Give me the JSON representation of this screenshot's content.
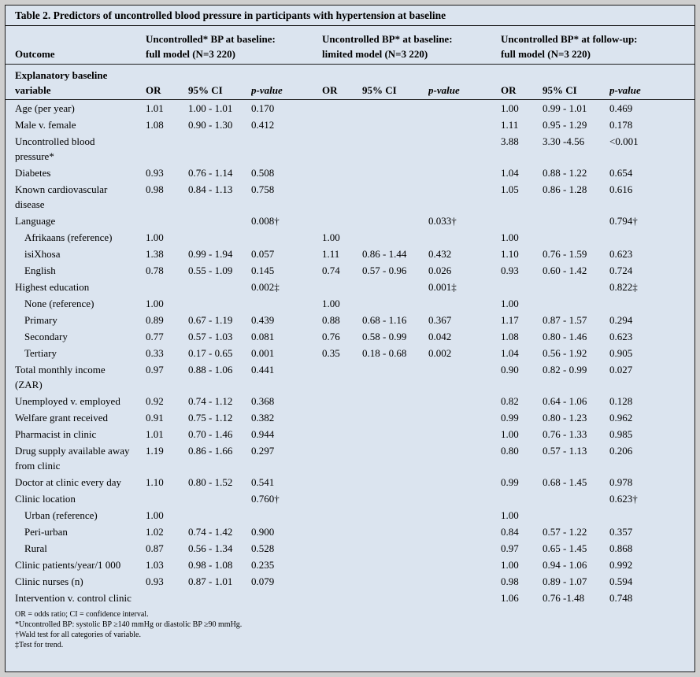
{
  "colors": {
    "background": "#dbe4ef",
    "border": "#1c1c1c",
    "text": "#000000",
    "outer_margin": "#cfcfcf"
  },
  "title": "Table 2. Predictors of uncontrolled blood pressure in participants with hypertension at baseline",
  "header": {
    "outcome_label": "Outcome",
    "variable_line1": "Explanatory baseline",
    "variable_line2": "variable",
    "groups": [
      {
        "line1": "Uncontrolled* BP at baseline:",
        "line2": "full model (N=3 220)"
      },
      {
        "line1": "Uncontrolled BP* at baseline:",
        "line2": "limited model (N=3 220)"
      },
      {
        "line1": "Uncontrolled BP* at follow-up:",
        "line2": "full model (N=3 220)"
      }
    ],
    "sub_headers": [
      "OR",
      "95% CI",
      "p-value"
    ]
  },
  "rows": [
    {
      "label": "Age (per year)",
      "indent": false,
      "cells": [
        "1.01",
        "1.00 - 1.01",
        "0.170",
        "",
        "",
        "",
        "1.00",
        "0.99 - 1.01",
        "0.469"
      ]
    },
    {
      "label": "Male v. female",
      "indent": false,
      "cells": [
        "1.08",
        "0.90 - 1.30",
        "0.412",
        "",
        "",
        "",
        "1.11",
        "0.95 - 1.29",
        "0.178"
      ]
    },
    {
      "label": "Uncontrolled blood pressure*",
      "indent": false,
      "cells": [
        "",
        "",
        "",
        "",
        "",
        "",
        "3.88",
        "3.30 -4.56",
        "<0.001"
      ]
    },
    {
      "label": "Diabetes",
      "indent": false,
      "cells": [
        "0.93",
        "0.76 - 1.14",
        "0.508",
        "",
        "",
        "",
        "1.04",
        "0.88 - 1.22",
        "0.654"
      ]
    },
    {
      "label": "Known cardiovascular disease",
      "indent": false,
      "cells": [
        "0.98",
        "0.84 - 1.13",
        "0.758",
        "",
        "",
        "",
        "1.05",
        "0.86 - 1.28",
        "0.616"
      ]
    },
    {
      "label": "Language",
      "indent": false,
      "cells": [
        "",
        "",
        "0.008†",
        "",
        "",
        "0.033†",
        "",
        "",
        "0.794†"
      ]
    },
    {
      "label": "Afrikaans (reference)",
      "indent": true,
      "cells": [
        "1.00",
        "",
        "",
        "1.00",
        "",
        "",
        "1.00",
        "",
        ""
      ]
    },
    {
      "label": "isiXhosa",
      "indent": true,
      "cells": [
        "1.38",
        "0.99 - 1.94",
        "0.057",
        "1.11",
        "0.86 - 1.44",
        "0.432",
        "1.10",
        "0.76 - 1.59",
        "0.623"
      ]
    },
    {
      "label": "English",
      "indent": true,
      "cells": [
        "0.78",
        "0.55 - 1.09",
        "0.145",
        "0.74",
        "0.57 - 0.96",
        "0.026",
        "0.93",
        "0.60 - 1.42",
        "0.724"
      ]
    },
    {
      "label": "Highest education",
      "indent": false,
      "cells": [
        "",
        "",
        "0.002‡",
        "",
        "",
        "0.001‡",
        "",
        "",
        "0.822‡"
      ]
    },
    {
      "label": "None (reference)",
      "indent": true,
      "cells": [
        "1.00",
        "",
        "",
        "1.00",
        "",
        "",
        "1.00",
        "",
        ""
      ]
    },
    {
      "label": "Primary",
      "indent": true,
      "cells": [
        "0.89",
        "0.67 - 1.19",
        "0.439",
        "0.88",
        "0.68 - 1.16",
        "0.367",
        "1.17",
        "0.87 - 1.57",
        "0.294"
      ]
    },
    {
      "label": "Secondary",
      "indent": true,
      "cells": [
        "0.77",
        "0.57 - 1.03",
        "0.081",
        "0.76",
        "0.58 - 0.99",
        "0.042",
        "1.08",
        "0.80 - 1.46",
        "0.623"
      ]
    },
    {
      "label": "Tertiary",
      "indent": true,
      "cells": [
        "0.33",
        "0.17 - 0.65",
        "0.001",
        "0.35",
        "0.18 - 0.68",
        "0.002",
        "1.04",
        "0.56 - 1.92",
        "0.905"
      ]
    },
    {
      "label": "Total monthly income (ZAR)",
      "indent": false,
      "cells": [
        "0.97",
        "0.88 - 1.06",
        "0.441",
        "",
        "",
        "",
        "0.90",
        "0.82 - 0.99",
        "0.027"
      ]
    },
    {
      "label": "Unemployed v. employed",
      "indent": false,
      "cells": [
        "0.92",
        "0.74 - 1.12",
        "0.368",
        "",
        "",
        "",
        "0.82",
        "0.64 - 1.06",
        "0.128"
      ]
    },
    {
      "label": "Welfare grant received",
      "indent": false,
      "cells": [
        "0.91",
        "0.75 - 1.12",
        "0.382",
        "",
        "",
        "",
        "0.99",
        "0.80 - 1.23",
        "0.962"
      ]
    },
    {
      "label": "Pharmacist in clinic",
      "indent": false,
      "cells": [
        "1.01",
        "0.70 - 1.46",
        "0.944",
        "",
        "",
        "",
        "1.00",
        "0.76 - 1.33",
        "0.985"
      ]
    },
    {
      "label": "Drug supply available away from clinic",
      "indent": false,
      "cells": [
        "1.19",
        "0.86 - 1.66",
        "0.297",
        "",
        "",
        "",
        "0.80",
        "0.57 - 1.13",
        "0.206"
      ]
    },
    {
      "label": "Doctor at clinic every day",
      "indent": false,
      "cells": [
        "1.10",
        "0.80 - 1.52",
        "0.541",
        "",
        "",
        "",
        "0.99",
        "0.68 - 1.45",
        "0.978"
      ]
    },
    {
      "label": "Clinic location",
      "indent": false,
      "cells": [
        "",
        "",
        "0.760†",
        "",
        "",
        "",
        "",
        "",
        "0.623†"
      ]
    },
    {
      "label": "Urban (reference)",
      "indent": true,
      "cells": [
        "1.00",
        "",
        "",
        "",
        "",
        "",
        "1.00",
        "",
        ""
      ]
    },
    {
      "label": "Peri-urban",
      "indent": true,
      "cells": [
        "1.02",
        "0.74 - 1.42",
        "0.900",
        "",
        "",
        "",
        "0.84",
        "0.57 - 1.22",
        "0.357"
      ]
    },
    {
      "label": "Rural",
      "indent": true,
      "cells": [
        "0.87",
        "0.56 - 1.34",
        "0.528",
        "",
        "",
        "",
        "0.97",
        "0.65 - 1.45",
        "0.868"
      ]
    },
    {
      "label": "Clinic patients/year/1 000",
      "indent": false,
      "cells": [
        "1.03",
        "0.98 - 1.08",
        "0.235",
        "",
        "",
        "",
        "1.00",
        "0.94 - 1.06",
        "0.992"
      ]
    },
    {
      "label": "Clinic nurses (n)",
      "indent": false,
      "cells": [
        "0.93",
        "0.87 - 1.01",
        "0.079",
        "",
        "",
        "",
        "0.98",
        "0.89 - 1.07",
        "0.594"
      ]
    },
    {
      "label": "Intervention v. control clinic",
      "indent": false,
      "cells": [
        "",
        "",
        "",
        "",
        "",
        "",
        "1.06",
        "0.76 -1.48",
        "0.748"
      ]
    }
  ],
  "footnotes": [
    "OR = odds ratio; CI = confidence interval.",
    "*Uncontrolled BP: systolic BP ≥140 mmHg or diastolic BP ≥90 mmHg.",
    "†Wald test for all categories of variable.",
    "‡Test for trend."
  ]
}
